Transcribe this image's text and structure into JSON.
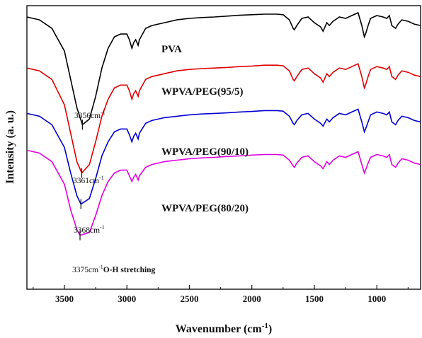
{
  "chart_data": {
    "type": "line",
    "xlabel": "Wavenumber (cm",
    "xlabel_sup": "-1",
    "xlabel_suffix": ")",
    "ylabel": "Intensity (a. u.)",
    "xlim": [
      3800,
      650
    ],
    "x_reversed": true,
    "x_ticks": [
      3500,
      3000,
      2500,
      2000,
      1500,
      1000
    ],
    "y_ticks_shown": false,
    "legend": "none",
    "series": [
      {
        "name": "PVA",
        "color": "#000000",
        "peak_label": "3356cm",
        "peak_sup": "-1",
        "peak_suffix": "",
        "peak_x": 3356,
        "points": [
          [
            3800,
            0.96
          ],
          [
            3700,
            0.95
          ],
          [
            3600,
            0.92
          ],
          [
            3500,
            0.84
          ],
          [
            3450,
            0.74
          ],
          [
            3400,
            0.64
          ],
          [
            3356,
            0.58
          ],
          [
            3300,
            0.6
          ],
          [
            3250,
            0.68
          ],
          [
            3200,
            0.78
          ],
          [
            3150,
            0.85
          ],
          [
            3100,
            0.89
          ],
          [
            3050,
            0.9
          ],
          [
            3000,
            0.9
          ],
          [
            2980,
            0.88
          ],
          [
            2960,
            0.85
          ],
          [
            2945,
            0.87
          ],
          [
            2930,
            0.88
          ],
          [
            2910,
            0.86
          ],
          [
            2900,
            0.88
          ],
          [
            2850,
            0.92
          ],
          [
            2800,
            0.93
          ],
          [
            2700,
            0.94
          ],
          [
            2600,
            0.95
          ],
          [
            2500,
            0.955
          ],
          [
            2400,
            0.958
          ],
          [
            2300,
            0.96
          ],
          [
            2200,
            0.963
          ],
          [
            2100,
            0.966
          ],
          [
            2000,
            0.968
          ],
          [
            1900,
            0.97
          ],
          [
            1800,
            0.97
          ],
          [
            1750,
            0.968
          ],
          [
            1700,
            0.95
          ],
          [
            1670,
            0.92
          ],
          [
            1660,
            0.915
          ],
          [
            1640,
            0.93
          ],
          [
            1600,
            0.955
          ],
          [
            1550,
            0.96
          ],
          [
            1500,
            0.94
          ],
          [
            1450,
            0.925
          ],
          [
            1430,
            0.91
          ],
          [
            1400,
            0.94
          ],
          [
            1380,
            0.93
          ],
          [
            1350,
            0.945
          ],
          [
            1300,
            0.96
          ],
          [
            1250,
            0.955
          ],
          [
            1200,
            0.965
          ],
          [
            1150,
            0.975
          ],
          [
            1140,
            0.96
          ],
          [
            1120,
            0.93
          ],
          [
            1100,
            0.89
          ],
          [
            1090,
            0.9
          ],
          [
            1070,
            0.93
          ],
          [
            1050,
            0.955
          ],
          [
            1000,
            0.965
          ],
          [
            950,
            0.96
          ],
          [
            920,
            0.955
          ],
          [
            900,
            0.965
          ],
          [
            880,
            0.93
          ],
          [
            850,
            0.92
          ],
          [
            830,
            0.935
          ],
          [
            800,
            0.95
          ],
          [
            750,
            0.945
          ],
          [
            700,
            0.935
          ],
          [
            650,
            0.93
          ]
        ]
      },
      {
        "name": "WPVA/PEG(95/5)",
        "color": "#e00000",
        "peak_label": "3361cm",
        "peak_sup": "-1",
        "peak_suffix": "",
        "peak_x": 3361,
        "points": [
          [
            3800,
            0.78
          ],
          [
            3700,
            0.77
          ],
          [
            3600,
            0.74
          ],
          [
            3500,
            0.65
          ],
          [
            3450,
            0.55
          ],
          [
            3400,
            0.45
          ],
          [
            3361,
            0.41
          ],
          [
            3300,
            0.44
          ],
          [
            3250,
            0.52
          ],
          [
            3200,
            0.61
          ],
          [
            3150,
            0.67
          ],
          [
            3100,
            0.71
          ],
          [
            3050,
            0.72
          ],
          [
            3000,
            0.72
          ],
          [
            2980,
            0.7
          ],
          [
            2960,
            0.67
          ],
          [
            2945,
            0.69
          ],
          [
            2930,
            0.7
          ],
          [
            2910,
            0.68
          ],
          [
            2900,
            0.7
          ],
          [
            2850,
            0.74
          ],
          [
            2800,
            0.75
          ],
          [
            2700,
            0.76
          ],
          [
            2600,
            0.77
          ],
          [
            2500,
            0.775
          ],
          [
            2400,
            0.778
          ],
          [
            2300,
            0.78
          ],
          [
            2200,
            0.782
          ],
          [
            2100,
            0.785
          ],
          [
            2000,
            0.787
          ],
          [
            1900,
            0.79
          ],
          [
            1800,
            0.79
          ],
          [
            1750,
            0.788
          ],
          [
            1700,
            0.77
          ],
          [
            1670,
            0.74
          ],
          [
            1660,
            0.735
          ],
          [
            1640,
            0.75
          ],
          [
            1600,
            0.775
          ],
          [
            1550,
            0.78
          ],
          [
            1500,
            0.76
          ],
          [
            1450,
            0.745
          ],
          [
            1430,
            0.73
          ],
          [
            1400,
            0.76
          ],
          [
            1380,
            0.75
          ],
          [
            1350,
            0.765
          ],
          [
            1300,
            0.78
          ],
          [
            1250,
            0.775
          ],
          [
            1200,
            0.785
          ],
          [
            1150,
            0.795
          ],
          [
            1140,
            0.78
          ],
          [
            1120,
            0.75
          ],
          [
            1100,
            0.71
          ],
          [
            1090,
            0.72
          ],
          [
            1070,
            0.75
          ],
          [
            1050,
            0.775
          ],
          [
            1000,
            0.785
          ],
          [
            950,
            0.78
          ],
          [
            920,
            0.775
          ],
          [
            900,
            0.785
          ],
          [
            880,
            0.75
          ],
          [
            850,
            0.74
          ],
          [
            830,
            0.755
          ],
          [
            800,
            0.77
          ],
          [
            750,
            0.765
          ],
          [
            700,
            0.755
          ],
          [
            650,
            0.75
          ]
        ]
      },
      {
        "name": "WPVA/PEG(90/10)",
        "color": "#0000d0",
        "peak_label": "3368cm",
        "peak_sup": "-1",
        "peak_suffix": "",
        "peak_x": 3368,
        "points": [
          [
            3800,
            0.62
          ],
          [
            3700,
            0.61
          ],
          [
            3600,
            0.58
          ],
          [
            3500,
            0.5
          ],
          [
            3450,
            0.41
          ],
          [
            3400,
            0.33
          ],
          [
            3368,
            0.3
          ],
          [
            3300,
            0.32
          ],
          [
            3250,
            0.39
          ],
          [
            3200,
            0.47
          ],
          [
            3150,
            0.52
          ],
          [
            3100,
            0.555
          ],
          [
            3050,
            0.565
          ],
          [
            3000,
            0.565
          ],
          [
            2980,
            0.545
          ],
          [
            2960,
            0.52
          ],
          [
            2945,
            0.54
          ],
          [
            2930,
            0.55
          ],
          [
            2910,
            0.53
          ],
          [
            2900,
            0.55
          ],
          [
            2850,
            0.585
          ],
          [
            2800,
            0.595
          ],
          [
            2700,
            0.605
          ],
          [
            2600,
            0.61
          ],
          [
            2500,
            0.615
          ],
          [
            2400,
            0.618
          ],
          [
            2300,
            0.62
          ],
          [
            2200,
            0.622
          ],
          [
            2100,
            0.625
          ],
          [
            2000,
            0.627
          ],
          [
            1900,
            0.63
          ],
          [
            1800,
            0.63
          ],
          [
            1750,
            0.628
          ],
          [
            1700,
            0.61
          ],
          [
            1670,
            0.585
          ],
          [
            1660,
            0.58
          ],
          [
            1640,
            0.595
          ],
          [
            1600,
            0.615
          ],
          [
            1550,
            0.62
          ],
          [
            1500,
            0.6
          ],
          [
            1450,
            0.585
          ],
          [
            1430,
            0.575
          ],
          [
            1400,
            0.6
          ],
          [
            1380,
            0.59
          ],
          [
            1350,
            0.605
          ],
          [
            1300,
            0.62
          ],
          [
            1250,
            0.615
          ],
          [
            1200,
            0.625
          ],
          [
            1150,
            0.635
          ],
          [
            1140,
            0.62
          ],
          [
            1120,
            0.59
          ],
          [
            1100,
            0.555
          ],
          [
            1090,
            0.565
          ],
          [
            1070,
            0.59
          ],
          [
            1050,
            0.615
          ],
          [
            1000,
            0.625
          ],
          [
            950,
            0.62
          ],
          [
            920,
            0.615
          ],
          [
            900,
            0.625
          ],
          [
            880,
            0.59
          ],
          [
            850,
            0.58
          ],
          [
            830,
            0.595
          ],
          [
            800,
            0.61
          ],
          [
            750,
            0.605
          ],
          [
            700,
            0.595
          ],
          [
            650,
            0.59
          ]
        ]
      },
      {
        "name": "WPVA/PEG(80/20)",
        "color": "#e000e0",
        "peak_label": "3375cm",
        "peak_sup": "-1",
        "peak_suffix": "O-H stretching",
        "peak_x": 3375,
        "points": [
          [
            3800,
            0.49
          ],
          [
            3700,
            0.48
          ],
          [
            3600,
            0.45
          ],
          [
            3500,
            0.37
          ],
          [
            3450,
            0.28
          ],
          [
            3400,
            0.21
          ],
          [
            3375,
            0.19
          ],
          [
            3300,
            0.2
          ],
          [
            3250,
            0.26
          ],
          [
            3200,
            0.33
          ],
          [
            3150,
            0.38
          ],
          [
            3100,
            0.41
          ],
          [
            3050,
            0.42
          ],
          [
            3000,
            0.42
          ],
          [
            2980,
            0.4
          ],
          [
            2960,
            0.38
          ],
          [
            2945,
            0.395
          ],
          [
            2930,
            0.405
          ],
          [
            2910,
            0.385
          ],
          [
            2900,
            0.4
          ],
          [
            2850,
            0.43
          ],
          [
            2800,
            0.44
          ],
          [
            2700,
            0.45
          ],
          [
            2600,
            0.455
          ],
          [
            2500,
            0.46
          ],
          [
            2400,
            0.463
          ],
          [
            2300,
            0.465
          ],
          [
            2200,
            0.468
          ],
          [
            2100,
            0.47
          ],
          [
            2000,
            0.473
          ],
          [
            1900,
            0.475
          ],
          [
            1800,
            0.475
          ],
          [
            1750,
            0.473
          ],
          [
            1700,
            0.455
          ],
          [
            1670,
            0.435
          ],
          [
            1660,
            0.43
          ],
          [
            1640,
            0.445
          ],
          [
            1600,
            0.465
          ],
          [
            1550,
            0.47
          ],
          [
            1500,
            0.45
          ],
          [
            1450,
            0.435
          ],
          [
            1430,
            0.425
          ],
          [
            1400,
            0.45
          ],
          [
            1380,
            0.44
          ],
          [
            1350,
            0.455
          ],
          [
            1300,
            0.47
          ],
          [
            1250,
            0.465
          ],
          [
            1200,
            0.475
          ],
          [
            1150,
            0.485
          ],
          [
            1140,
            0.47
          ],
          [
            1120,
            0.44
          ],
          [
            1100,
            0.41
          ],
          [
            1090,
            0.42
          ],
          [
            1070,
            0.445
          ],
          [
            1050,
            0.465
          ],
          [
            1000,
            0.475
          ],
          [
            950,
            0.47
          ],
          [
            920,
            0.465
          ],
          [
            900,
            0.475
          ],
          [
            880,
            0.44
          ],
          [
            850,
            0.43
          ],
          [
            830,
            0.445
          ],
          [
            800,
            0.46
          ],
          [
            750,
            0.455
          ],
          [
            700,
            0.445
          ],
          [
            650,
            0.44
          ]
        ]
      }
    ]
  }
}
